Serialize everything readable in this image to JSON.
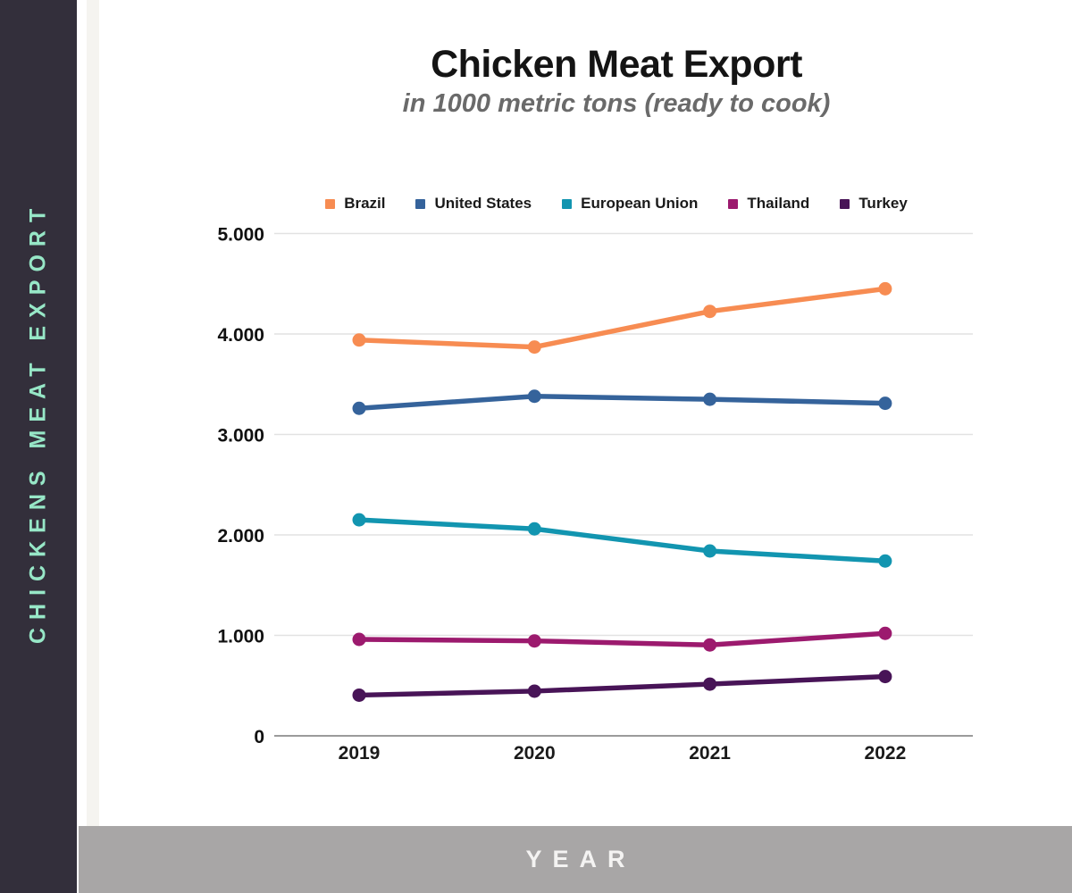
{
  "sidebar": {
    "vertical_label": "CHICKENS MEAT EXPORT",
    "bg_color": "#332F3B",
    "text_color": "#97E7C7"
  },
  "header": {
    "title": "Chicken Meat Export",
    "subtitle": "in 1000 metric tons (ready to cook)"
  },
  "footer": {
    "label": "YEAR",
    "bg_color": "#A8A6A6"
  },
  "chart_data": {
    "type": "line",
    "title": "Chicken Meat Export",
    "subtitle": "in 1000 metric tons (ready to cook)",
    "xlabel": "YEAR",
    "ylabel": "",
    "categories": [
      "2019",
      "2020",
      "2021",
      "2022"
    ],
    "series": [
      {
        "name": "Brazil",
        "color": "#F78C52",
        "values": [
          3940,
          3870,
          4225,
          4450
        ]
      },
      {
        "name": "United States",
        "color": "#35639B",
        "values": [
          3260,
          3380,
          3350,
          3310
        ]
      },
      {
        "name": "European Union",
        "color": "#1295B0",
        "values": [
          2150,
          2060,
          1840,
          1740
        ]
      },
      {
        "name": "Thailand",
        "color": "#9C1A6E",
        "values": [
          960,
          945,
          905,
          1020
        ]
      },
      {
        "name": "Turkey",
        "color": "#481457",
        "values": [
          405,
          445,
          515,
          590
        ]
      }
    ],
    "ylim": [
      0,
      5000
    ],
    "yticks": [
      0,
      1000,
      2000,
      3000,
      4000,
      5000
    ],
    "ytick_labels": [
      "0",
      "1.000",
      "2.000",
      "3.000",
      "4.000",
      "5.000"
    ],
    "grid": true,
    "gridline_color": "#E2E2E2",
    "axis_line_color": "#9B9B9B",
    "legend_position": "top"
  }
}
